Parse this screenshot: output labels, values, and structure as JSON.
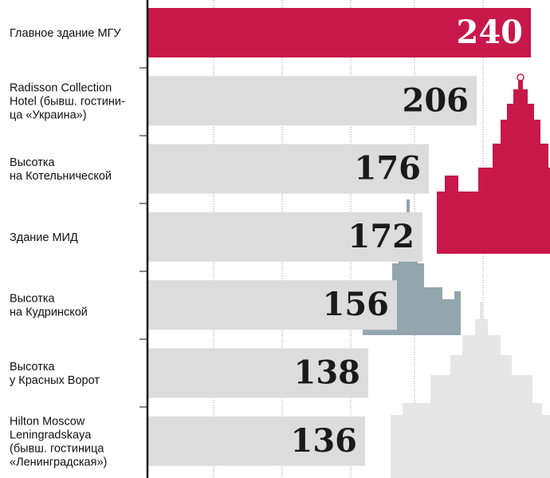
{
  "chart_data": {
    "type": "bar",
    "orientation": "horizontal",
    "categories": [
      "Главное здание МГУ",
      "Radisson Collection\nHotel (бывш. гостини-\nца «Украина»)",
      "Высотка\nна Котельнической",
      "Здание МИД",
      "Высотка\nна  Кудринской",
      "Высотка\nу Красных Ворот",
      "Hilton Moscow\nLeningradskaya\n(бывш. гостиница\n«Ленинградская»)"
    ],
    "values": [
      240,
      206,
      176,
      172,
      156,
      138,
      136
    ],
    "colors": [
      "#c8184a",
      "#dcdcdc",
      "#dcdcdc",
      "#dcdcdc",
      "#dcdcdc",
      "#dcdcdc",
      "#dcdcdc"
    ],
    "label_colors": [
      "#ffffff",
      "#1a1a1a",
      "#1a1a1a",
      "#1a1a1a",
      "#1a1a1a",
      "#1a1a1a",
      "#1a1a1a"
    ]
  }
}
